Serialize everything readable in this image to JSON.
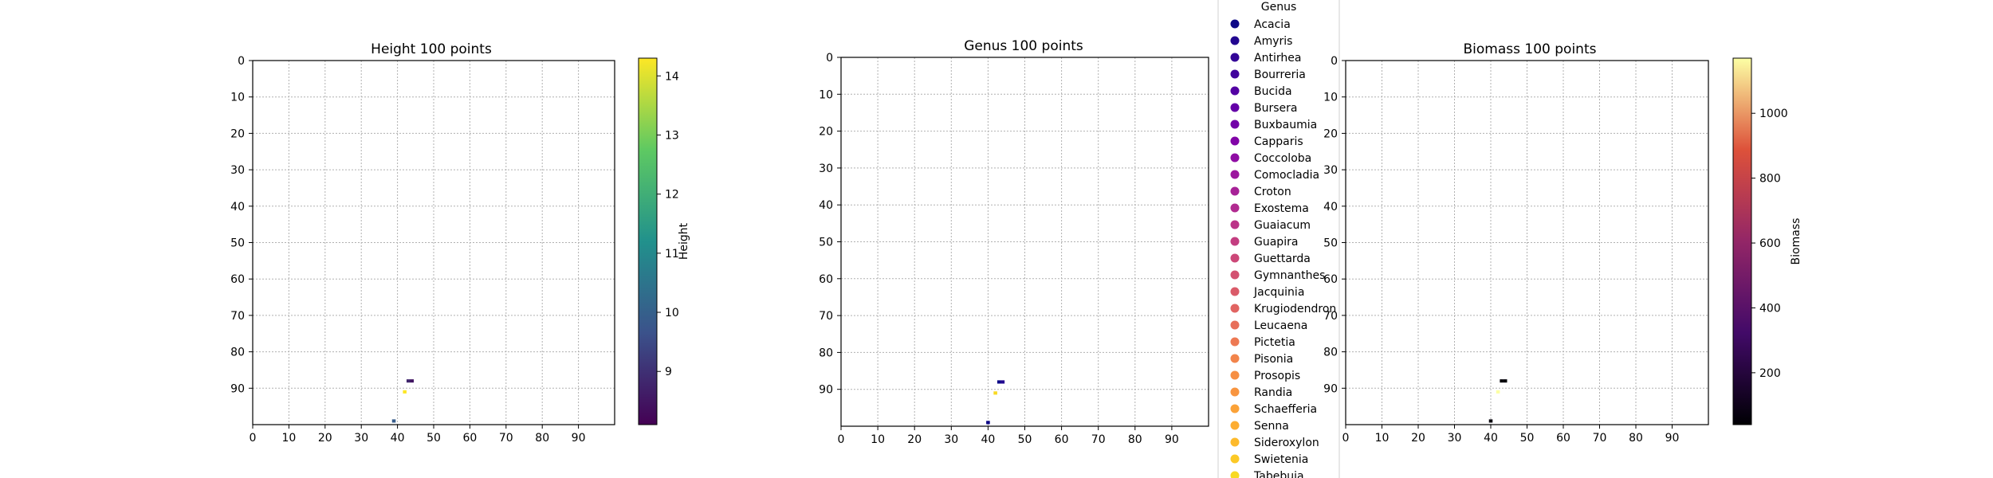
{
  "chart_data": [
    {
      "type": "scatter",
      "title": "Height 100 points",
      "xlabel": "",
      "ylabel": "",
      "xlim": [
        0,
        100
      ],
      "ylim": [
        100,
        0
      ],
      "xticks": [
        "0",
        "10",
        "20",
        "30",
        "40",
        "50",
        "60",
        "70",
        "80",
        "90"
      ],
      "yticks": [
        "0",
        "10",
        "20",
        "30",
        "40",
        "50",
        "60",
        "70",
        "80",
        "90"
      ],
      "grid": true,
      "colorbar": {
        "label": "Height",
        "colormap": "viridis",
        "range": [
          8.1,
          14.3
        ],
        "ticks": [
          "9",
          "10",
          "11",
          "12",
          "13",
          "14"
        ],
        "tick_values": [
          9,
          10,
          11,
          12,
          13,
          14
        ]
      },
      "points": [
        {
          "x": 43,
          "y": 88,
          "value": 8.8
        },
        {
          "x": 44,
          "y": 88,
          "value": 8.5
        },
        {
          "x": 42,
          "y": 91,
          "value": 14.3
        },
        {
          "x": 39,
          "y": 99,
          "value": 9.9
        }
      ]
    },
    {
      "type": "scatter",
      "title": "Genus 100 points",
      "xlabel": "",
      "ylabel": "",
      "xlim": [
        0,
        100
      ],
      "ylim": [
        100,
        0
      ],
      "xticks": [
        "0",
        "10",
        "20",
        "30",
        "40",
        "50",
        "60",
        "70",
        "80",
        "90"
      ],
      "yticks": [
        "0",
        "10",
        "20",
        "30",
        "40",
        "50",
        "60",
        "70",
        "80",
        "90"
      ],
      "grid": true,
      "legend": {
        "title": "Genus",
        "placement": "right",
        "entries": [
          {
            "name": "Acacia",
            "color": "#0d0887"
          },
          {
            "name": "Amyris",
            "color": "#220690"
          },
          {
            "name": "Antirhea",
            "color": "#330597"
          },
          {
            "name": "Bourreria",
            "color": "#41049d"
          },
          {
            "name": "Bucida",
            "color": "#5302a3"
          },
          {
            "name": "Bursera",
            "color": "#6300a7"
          },
          {
            "name": "Buxbaumia",
            "color": "#7201a8"
          },
          {
            "name": "Capparis",
            "color": "#8104a7"
          },
          {
            "name": "Coccoloba",
            "color": "#8f0da4"
          },
          {
            "name": "Comocladia",
            "color": "#9c179e"
          },
          {
            "name": "Croton",
            "color": "#a72197"
          },
          {
            "name": "Exostema",
            "color": "#b12a90"
          },
          {
            "name": "Guaiacum",
            "color": "#bb3488"
          },
          {
            "name": "Guapira",
            "color": "#c33d80"
          },
          {
            "name": "Guettarda",
            "color": "#cc4778"
          },
          {
            "name": "Gymnanthes",
            "color": "#d35171"
          },
          {
            "name": "Jacquinia",
            "color": "#da5b69"
          },
          {
            "name": "Krugiodendron",
            "color": "#e16462"
          },
          {
            "name": "Leucaena",
            "color": "#e76f5a"
          },
          {
            "name": "Pictetia",
            "color": "#ed7953"
          },
          {
            "name": "Pisonia",
            "color": "#f2844b"
          },
          {
            "name": "Prosopis",
            "color": "#f68f44"
          },
          {
            "name": "Randia",
            "color": "#f89540"
          },
          {
            "name": "Schaefferia",
            "color": "#fba238"
          },
          {
            "name": "Senna",
            "color": "#fdad32"
          },
          {
            "name": "Sideroxylon",
            "color": "#fdba2c"
          },
          {
            "name": "Swietenia",
            "color": "#fcc926"
          },
          {
            "name": "Tabebuia",
            "color": "#f8d923"
          }
        ]
      },
      "points": [
        {
          "x": 43,
          "y": 88,
          "genus": "Acacia"
        },
        {
          "x": 44,
          "y": 88,
          "genus": "Amyris"
        },
        {
          "x": 42,
          "y": 91,
          "genus": "Tabebuia"
        },
        {
          "x": 40,
          "y": 99,
          "genus": "Acacia"
        }
      ]
    },
    {
      "type": "scatter",
      "title": "Biomass 100 points",
      "xlabel": "",
      "ylabel": "",
      "xlim": [
        0,
        100
      ],
      "ylim": [
        100,
        0
      ],
      "xticks": [
        "0",
        "10",
        "20",
        "30",
        "40",
        "50",
        "60",
        "70",
        "80",
        "90"
      ],
      "yticks": [
        "0",
        "10",
        "20",
        "30",
        "40",
        "50",
        "60",
        "70",
        "80",
        "90"
      ],
      "grid": true,
      "colorbar": {
        "label": "Biomass",
        "colormap": "inferno",
        "range": [
          40,
          1170
        ],
        "ticks": [
          "200",
          "400",
          "600",
          "800",
          "1000"
        ],
        "tick_values": [
          200,
          400,
          600,
          800,
          1000
        ]
      },
      "points": [
        {
          "x": 43,
          "y": 88,
          "value": 45
        },
        {
          "x": 44,
          "y": 88,
          "value": 50
        },
        {
          "x": 42,
          "y": 91,
          "value": 1170
        },
        {
          "x": 40,
          "y": 99,
          "value": 60
        }
      ]
    }
  ]
}
